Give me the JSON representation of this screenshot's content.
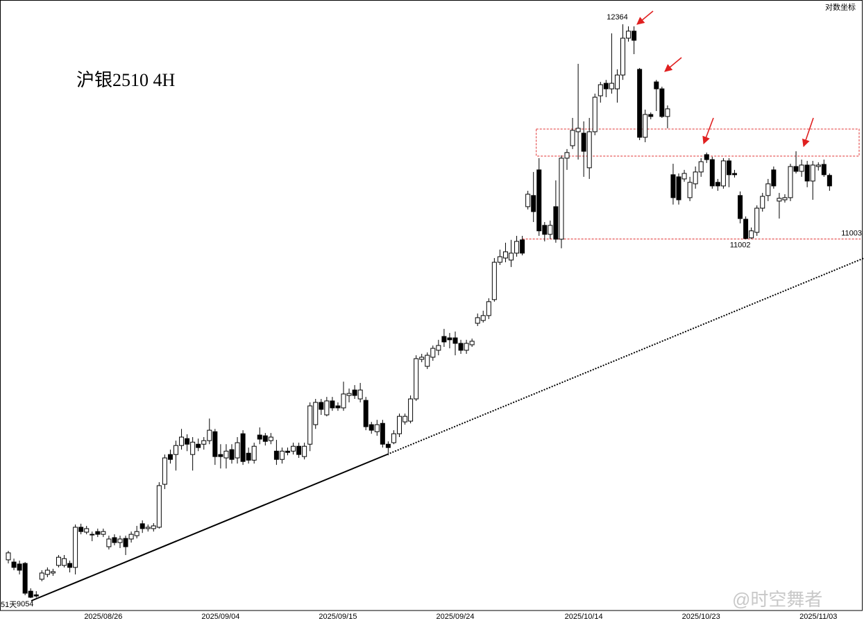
{
  "chart_data": {
    "type": "candlestick",
    "title": "沪银2510  4H",
    "scale_label": "对数坐标",
    "corner_note": "51天",
    "watermark": "@时空舞者",
    "log_scale": true,
    "ylim": [
      8993,
      12528
    ],
    "up_color": "#ffffff",
    "down_color": "#000000",
    "categories": [
      null,
      null,
      null,
      null,
      null,
      null,
      null,
      null,
      null,
      null,
      null,
      null,
      null,
      null,
      null,
      null,
      null,
      "2025/08/26",
      null,
      null,
      null,
      null,
      null,
      null,
      null,
      null,
      null,
      null,
      null,
      null,
      null,
      null,
      null,
      null,
      null,
      null,
      null,
      null,
      "2025/09/04",
      null,
      null,
      null,
      null,
      null,
      null,
      null,
      null,
      null,
      null,
      null,
      null,
      null,
      null,
      null,
      null,
      null,
      null,
      null,
      null,
      "2025/09/15",
      null,
      null,
      null,
      null,
      null,
      null,
      null,
      null,
      null,
      null,
      null,
      null,
      null,
      null,
      null,
      null,
      null,
      null,
      null,
      null,
      "2025/09/24",
      null,
      null,
      null,
      null,
      null,
      null,
      null,
      null,
      null,
      null,
      null,
      null,
      null,
      null,
      null,
      null,
      null,
      null,
      null,
      null,
      null,
      null,
      "2025/10/14",
      null,
      null,
      null,
      null,
      null,
      null,
      null,
      null,
      null,
      null,
      null,
      null,
      null,
      null,
      null,
      null,
      null,
      null,
      null,
      null,
      "2025/10/23",
      null,
      null,
      null,
      null,
      null,
      null,
      null,
      null,
      null,
      null,
      null,
      null,
      null,
      null,
      null,
      null,
      null,
      null,
      null,
      null,
      "2025/11/03",
      null,
      null
    ],
    "open": [
      9244,
      9233,
      9223,
      9226,
      9088,
      9070,
      9147,
      9171,
      9178,
      9216,
      9216,
      9226,
      9206,
      9409,
      9384,
      9370,
      9387,
      9373,
      9310,
      9356,
      9331,
      9352,
      9349,
      9366,
      9427,
      9402,
      9402,
      9409,
      9631,
      9788,
      9788,
      9836,
      9873,
      9788,
      9843,
      9843,
      9862,
      9910,
      9788,
      9770,
      9814,
      9770,
      9899,
      9795,
      9758,
      9892,
      9888,
      9862,
      9806,
      9762,
      9806,
      9806,
      9832,
      9777,
      9843,
      9948,
      10069,
      10001,
      10077,
      10050,
      10039,
      10107,
      10137,
      10088,
      10080,
      9948,
      9910,
      9955,
      9843,
      9851,
      9899,
      9963,
      9967,
      10088,
      10307,
      10268,
      10319,
      10358,
      10436,
      10428,
      10428,
      10397,
      10358,
      10389,
      10511,
      10527,
      10555,
      10647,
      10865,
      10890,
      10878,
      10919,
      10998,
      11198,
      11266,
      11424,
      11085,
      11031,
      11198,
      11002,
      11497,
      11575,
      11663,
      11654,
      11437,
      11663,
      11893,
      11974,
      11938,
      11938,
      12028,
      12271,
      12318,
      12065,
      11628,
      11773,
      11983,
      11938,
      11760,
      11394,
      11381,
      11368,
      11253,
      11338,
      11411,
      11519,
      11488,
      11347,
      11325,
      11480,
      11402,
      11266,
      11122,
      11010,
      11043,
      11189,
      11266,
      11424,
      11232,
      11240,
      11253,
      11445,
      11415,
      11454,
      11355,
      11445,
      11458,
      11390
    ],
    "high": [
      9289,
      9250,
      9240,
      9233,
      9102,
      9088,
      9192,
      9206,
      9199,
      9268,
      9268,
      9240,
      9423,
      9427,
      9416,
      9387,
      9402,
      9402,
      9366,
      9373,
      9366,
      9366,
      9387,
      9416,
      9444,
      9423,
      9430,
      9642,
      9788,
      9814,
      9862,
      9925,
      9896,
      9881,
      9873,
      9881,
      9981,
      9925,
      9843,
      9843,
      9843,
      9881,
      9918,
      9825,
      9851,
      9933,
      9903,
      9903,
      9866,
      9825,
      9825,
      9851,
      9851,
      9851,
      10069,
      10088,
      10088,
      10099,
      10099,
      10069,
      10183,
      10145,
      10164,
      10176,
      10099,
      9963,
      9974,
      9974,
      9858,
      9918,
      10008,
      10008,
      10107,
      10330,
      10338,
      10346,
      10385,
      10417,
      10479,
      10456,
      10464,
      10417,
      10417,
      10424,
      10567,
      10583,
      10655,
      10890,
      10940,
      10981,
      10998,
      11022,
      11022,
      11295,
      11411,
      11497,
      11105,
      11114,
      11359,
      11514,
      11554,
      11751,
      12101,
      11729,
      11751,
      11907,
      11983,
      11996,
      12303,
      12065,
      12364,
      12350,
      12350,
      12074,
      11804,
      11786,
      11996,
      11952,
      11831,
      11462,
      11402,
      11424,
      11381,
      11445,
      11497,
      11532,
      11506,
      11368,
      11497,
      11497,
      11424,
      11291,
      11139,
      11072,
      11206,
      11282,
      11368,
      11445,
      11282,
      11274,
      11462,
      11540,
      11488,
      11480,
      11480,
      11471,
      11488,
      11402
    ],
    "low": [
      9226,
      9192,
      9171,
      9068,
      9054,
      9056,
      9137,
      9157,
      9164,
      9206,
      9206,
      9181,
      9171,
      9373,
      9373,
      9338,
      9359,
      9359,
      9296,
      9317,
      9303,
      9268,
      9331,
      9352,
      9380,
      9387,
      9387,
      9402,
      9606,
      9740,
      9703,
      9814,
      9806,
      9703,
      9806,
      9814,
      9843,
      9733,
      9714,
      9714,
      9740,
      9740,
      9733,
      9740,
      9740,
      9843,
      9836,
      9843,
      9733,
      9740,
      9784,
      9788,
      9770,
      9762,
      9806,
      9925,
      10001,
      9993,
      10023,
      10023,
      10023,
      10069,
      10088,
      10069,
      9918,
      9899,
      9888,
      9825,
      9784,
      9843,
      9881,
      9948,
      9955,
      10077,
      10291,
      10253,
      10299,
      10330,
      10377,
      10369,
      10330,
      10338,
      10338,
      10377,
      10495,
      10515,
      10535,
      10635,
      10849,
      10865,
      10837,
      10898,
      10906,
      11181,
      11105,
      11022,
      10989,
      11002,
      10981,
      10948,
      11424,
      11554,
      11488,
      11381,
      11368,
      11641,
      11849,
      11884,
      11907,
      11849,
      11996,
      12248,
      12165,
      11610,
      11597,
      11742,
      11795,
      11751,
      11685,
      11211,
      11211,
      11351,
      11232,
      11308,
      11381,
      11467,
      11308,
      11295,
      11308,
      11317,
      11377,
      11097,
      11002,
      11004,
      11022,
      11168,
      11232,
      11308,
      11126,
      11223,
      11232,
      11402,
      11381,
      11317,
      11240,
      11420,
      11381,
      11295
    ],
    "close": [
      9279,
      9206,
      9192,
      9078,
      9058,
      9064,
      9178,
      9192,
      9185,
      9257,
      9250,
      9206,
      9409,
      9387,
      9402,
      9373,
      9373,
      9387,
      9349,
      9331,
      9349,
      9310,
      9373,
      9387,
      9402,
      9409,
      9416,
      9624,
      9770,
      9762,
      9836,
      9881,
      9843,
      9854,
      9825,
      9862,
      9918,
      9777,
      9777,
      9806,
      9762,
      9851,
      9751,
      9758,
      9832,
      9870,
      9858,
      9881,
      9762,
      9806,
      9799,
      9832,
      9788,
      9832,
      10050,
      10069,
      10031,
      10077,
      10039,
      10039,
      10115,
      10118,
      10107,
      10137,
      9937,
      9918,
      9948,
      9843,
      9825,
      9899,
      9993,
      9993,
      10088,
      10311,
      10319,
      10330,
      10369,
      10385,
      10405,
      10417,
      10397,
      10358,
      10397,
      10409,
      10543,
      10555,
      10635,
      10865,
      10898,
      10927,
      10919,
      10989,
      10919,
      11274,
      11168,
      11052,
      11031,
      11085,
      11002,
      11497,
      11532,
      11672,
      11685,
      11540,
      11663,
      11884,
      11965,
      11938,
      11974,
      12028,
      12271,
      12318,
      12257,
      11628,
      11773,
      11760,
      11938,
      11760,
      11809,
      11253,
      11240,
      11402,
      11347,
      11411,
      11475,
      11488,
      11325,
      11325,
      11480,
      11394,
      11394,
      11126,
      11006,
      11052,
      11189,
      11261,
      11338,
      11325,
      11249,
      11253,
      11445,
      11415,
      11454,
      11355,
      11454,
      11454,
      11394,
      11325
    ],
    "zone": {
      "range": [
        11510,
        11680
      ],
      "color": "#e03030"
    },
    "support": {
      "value": 11003,
      "color": "#e03030"
    },
    "annotations": [
      {
        "value": 12364,
        "index": 110,
        "side": "above"
      },
      {
        "value": 11002,
        "index": 132,
        "side": "below"
      },
      {
        "value": 9054,
        "index": 4,
        "side": "below"
      }
    ]
  }
}
